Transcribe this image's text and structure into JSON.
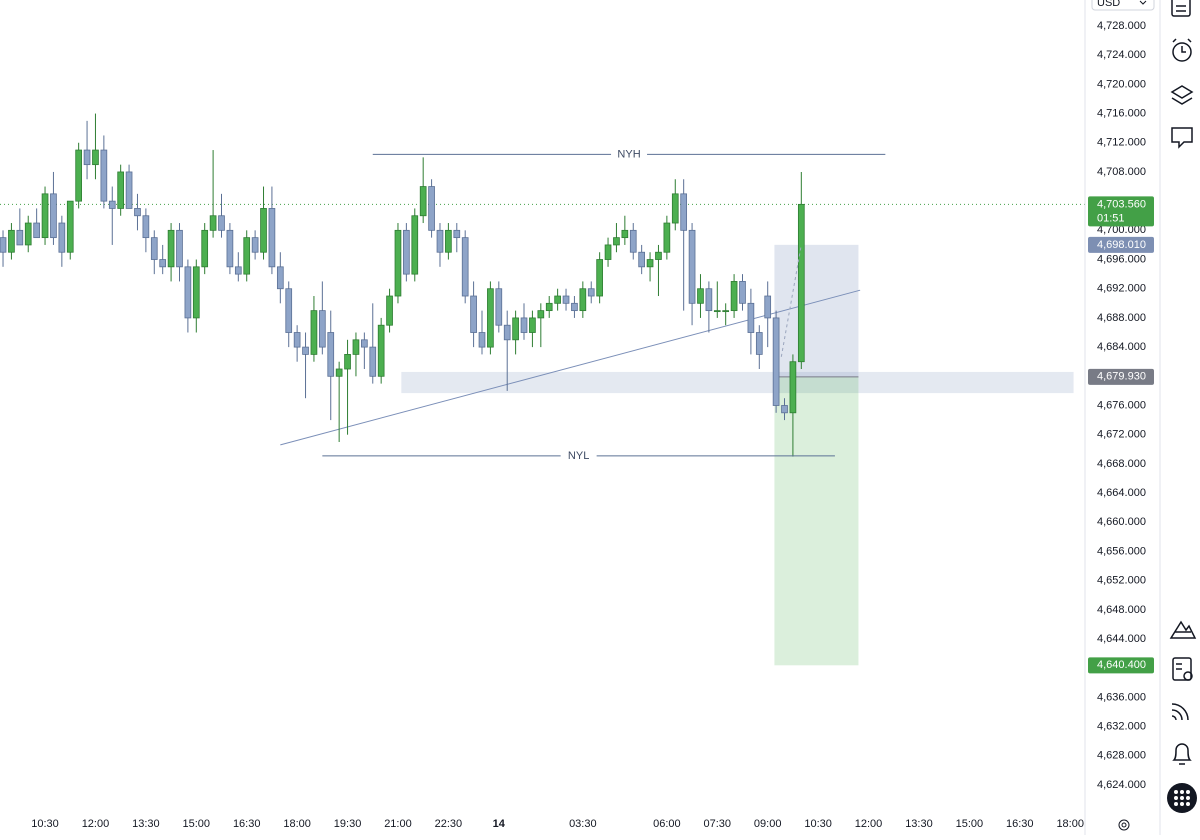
{
  "chart_data": {
    "type": "candlestick",
    "currency": "USD",
    "up_color": "#4caf50",
    "up_border": "#2e7d32",
    "down_color": "#8ea4c8",
    "down_border": "#5b7095",
    "x": [
      9,
      9.25,
      9.5,
      9.75,
      10,
      10.25,
      10.5,
      10.75,
      11,
      11.25,
      11.5,
      11.75,
      12,
      12.25,
      12.5,
      12.75,
      13,
      13.25,
      13.5,
      13.75,
      14,
      14.25,
      14.5,
      14.75,
      15,
      15.25,
      15.5,
      15.75,
      16,
      16.25,
      16.5,
      16.75,
      17,
      17.25,
      17.5,
      17.75,
      18,
      18.25,
      18.5,
      18.75,
      19,
      19.25,
      19.5,
      19.75,
      20,
      20.25,
      20.5,
      20.75,
      21,
      21.25,
      21.5,
      21.75,
      22,
      22.25,
      22.5,
      22.75,
      23,
      23.25,
      23.5,
      23.75,
      24,
      24.25,
      24.5,
      24.75,
      25,
      25.25,
      25.5,
      25.75,
      26,
      26.25,
      26.5,
      26.75,
      27,
      27.25,
      27.5,
      27.75,
      28,
      28.25,
      28.5,
      28.75,
      29,
      29.25,
      29.5,
      29.75,
      30,
      30.25,
      30.5,
      30.75,
      31,
      31.25,
      31.5,
      31.75,
      32,
      32.25,
      32.5,
      32.75,
      33
    ],
    "open": [
      4704,
      4699,
      4697,
      4700,
      4698,
      4701,
      4699,
      4705,
      4701,
      4697,
      4704,
      4711,
      4709,
      4711,
      4704,
      4703,
      4708,
      4703,
      4702,
      4699,
      4696,
      4695,
      4700,
      4695,
      4688,
      4695,
      4700,
      4702,
      4700,
      4695,
      4694,
      4699,
      4697,
      4703,
      4695,
      4692,
      4686,
      4684,
      4683,
      4689,
      4686,
      4680,
      4681,
      4683,
      4685,
      4684,
      4680,
      4687,
      4691,
      4700,
      4694,
      4702,
      4706,
      4700,
      4697,
      4700,
      4699,
      4691,
      4686,
      4684,
      4692,
      4687,
      4685,
      4688,
      4686,
      4688,
      4689,
      4690,
      4691,
      4690,
      4689,
      4692,
      4691,
      4696,
      4698,
      4699,
      4700,
      4697,
      4695,
      4696,
      4697,
      4701,
      4705,
      4700,
      4690,
      4692,
      4689,
      4689,
      4689,
      4693,
      4690,
      4686,
      4691,
      4688,
      4676,
      4675,
      4682
    ],
    "high": [
      4705,
      4700,
      4701,
      4703,
      4702,
      4703,
      4706,
      4708,
      4702,
      4704,
      4712,
      4715,
      4716,
      4713,
      4706,
      4709,
      4709,
      4705,
      4703,
      4700,
      4698,
      4701,
      4701,
      4696,
      4696,
      4701,
      4711,
      4705,
      4701,
      4697,
      4700,
      4700,
      4706,
      4706,
      4697,
      4693,
      4687,
      4686,
      4691,
      4693,
      4689,
      4682,
      4685,
      4686,
      4686,
      4690,
      4688,
      4692,
      4701,
      4701,
      4703,
      4710,
      4707,
      4701,
      4701,
      4701,
      4700,
      4693,
      4689,
      4693,
      4693,
      4689,
      4689,
      4690,
      4689,
      4690,
      4691,
      4692,
      4692,
      4691,
      4693,
      4693,
      4697,
      4699,
      4701,
      4702,
      4701,
      4698,
      4697,
      4698,
      4702,
      4707,
      4707,
      4701,
      4694,
      4693,
      4693,
      4690,
      4694,
      4694,
      4692,
      4687,
      4693,
      4689,
      4677,
      4683,
      4708
    ],
    "low": [
      4697,
      4695,
      4696,
      4698,
      4697,
      4699,
      4698,
      4698,
      4695,
      4696,
      4703,
      4707,
      4707,
      4703,
      4698,
      4702,
      4703,
      4700,
      4697,
      4694,
      4694,
      4693,
      4693,
      4686,
      4686,
      4694,
      4699,
      4699,
      4694,
      4693,
      4693,
      4696,
      4696,
      4694,
      4690,
      4684,
      4682,
      4677,
      4682,
      4683,
      4674,
      4671,
      4672,
      4680,
      4681,
      4679,
      4679,
      4686,
      4690,
      4693,
      4693,
      4701,
      4699,
      4695,
      4696,
      4697,
      4690,
      4684,
      4683,
      4683,
      4686,
      4678,
      4683,
      4685,
      4684,
      4684,
      4688,
      4689,
      4689,
      4688,
      4688,
      4690,
      4690,
      4695,
      4697,
      4698,
      4696,
      4694,
      4693,
      4691,
      4696,
      4700,
      4689,
      4687,
      4688,
      4686,
      4688,
      4687,
      4688,
      4689,
      4683,
      4681,
      4684,
      4675,
      4674,
      4669,
      4681
    ],
    "close": [
      4699,
      4697,
      4700,
      4698,
      4701,
      4699,
      4705,
      4699,
      4697,
      4704,
      4711,
      4709,
      4711,
      4704,
      4703,
      4708,
      4703,
      4702,
      4699,
      4696,
      4695,
      4700,
      4695,
      4688,
      4695,
      4700,
      4702,
      4700,
      4695,
      4694,
      4699,
      4697,
      4703,
      4695,
      4692,
      4686,
      4684,
      4683,
      4689,
      4684,
      4680,
      4681,
      4683,
      4685,
      4684,
      4680,
      4687,
      4691,
      4700,
      4694,
      4702,
      4706,
      4700,
      4697,
      4700,
      4699,
      4691,
      4686,
      4684,
      4692,
      4687,
      4685,
      4688,
      4686,
      4688,
      4689,
      4690,
      4691,
      4690,
      4689,
      4692,
      4691,
      4696,
      4698,
      4699,
      4700,
      4697,
      4695,
      4696,
      4697,
      4701,
      4705,
      4700,
      4690,
      4692,
      4689,
      4689,
      4689,
      4693,
      4690,
      4686,
      4683,
      4688,
      4676,
      4675,
      4682,
      4703.56
    ],
    "xlim": [
      9.16,
      41.44
    ],
    "ylim": [
      4620.85,
      4731.56
    ],
    "xticks": [
      {
        "value": 10.5,
        "label": "10:30"
      },
      {
        "value": 12,
        "label": "12:00"
      },
      {
        "value": 13.5,
        "label": "13:30"
      },
      {
        "value": 15,
        "label": "15:00"
      },
      {
        "value": 16.5,
        "label": "16:30"
      },
      {
        "value": 18,
        "label": "18:00"
      },
      {
        "value": 19.5,
        "label": "19:30"
      },
      {
        "value": 21,
        "label": "21:00"
      },
      {
        "value": 22.5,
        "label": "22:30"
      },
      {
        "value": 24,
        "label": "14"
      },
      {
        "value": 26.5,
        "label": "03:30"
      },
      {
        "value": 29,
        "label": "06:00"
      },
      {
        "value": 30.5,
        "label": "07:30"
      },
      {
        "value": 32,
        "label": "09:00"
      },
      {
        "value": 33.5,
        "label": "10:30"
      },
      {
        "value": 35,
        "label": "12:00"
      },
      {
        "value": 36.5,
        "label": "13:30"
      },
      {
        "value": 38,
        "label": "15:00"
      },
      {
        "value": 39.5,
        "label": "16:30"
      },
      {
        "value": 41,
        "label": "18:00"
      }
    ],
    "yticks": [
      {
        "value": 4624,
        "label": "4,624.000"
      },
      {
        "value": 4628,
        "label": "4,628.000"
      },
      {
        "value": 4632,
        "label": "4,632.000"
      },
      {
        "value": 4636,
        "label": "4,636.000"
      },
      {
        "value": 4640,
        "label": "4,640.000"
      },
      {
        "value": 4644,
        "label": "4,644.000"
      },
      {
        "value": 4648,
        "label": "4,648.000"
      },
      {
        "value": 4652,
        "label": "4,652.000"
      },
      {
        "value": 4656,
        "label": "4,656.000"
      },
      {
        "value": 4660,
        "label": "4,660.000"
      },
      {
        "value": 4664,
        "label": "4,664.000"
      },
      {
        "value": 4668,
        "label": "4,668.000"
      },
      {
        "value": 4672,
        "label": "4,672.000"
      },
      {
        "value": 4676,
        "label": "4,676.000"
      },
      {
        "value": 4680,
        "label": "4,680.000"
      },
      {
        "value": 4684,
        "label": "4,684.000"
      },
      {
        "value": 4688,
        "label": "4,688.000"
      },
      {
        "value": 4692,
        "label": "4,692.000"
      },
      {
        "value": 4696,
        "label": "4,696.000"
      },
      {
        "value": 4700,
        "label": "4,700.000"
      },
      {
        "value": 4704,
        "label": "4,704.000"
      },
      {
        "value": 4708,
        "label": "4,708.000"
      },
      {
        "value": 4712,
        "label": "4,712.000"
      },
      {
        "value": 4716,
        "label": "4,716.000"
      },
      {
        "value": 4720,
        "label": "4,720.000"
      },
      {
        "value": 4724,
        "label": "4,724.000"
      },
      {
        "value": 4728,
        "label": "4,728.000"
      }
    ],
    "levels": [
      {
        "label": "NYH",
        "y": 4710.4,
        "x": [
          20.25,
          35.5
        ]
      },
      {
        "label": "NYL",
        "y": 4669.1,
        "x": [
          18.75,
          34
        ]
      }
    ],
    "trendline": {
      "x": [
        17.5,
        34.75
      ],
      "y": [
        4670.6,
        4691.8
      ]
    },
    "zone": {
      "x": [
        21.1,
        41.1
      ],
      "y": [
        4677.7,
        4680.6
      ]
    },
    "position": {
      "x": [
        32.2,
        34.7
      ],
      "entry": 4679.93,
      "target": 4698.01,
      "stop": 4640.4
    },
    "price_labels": [
      {
        "value": 4703.56,
        "label": "4,703.560",
        "countdown": "01:51",
        "color": "#43a047"
      },
      {
        "value": 4698.01,
        "label": "4,698.010",
        "color": "#7d8fb3"
      },
      {
        "value": 4679.93,
        "label": "4,679.930",
        "color": "#787b86"
      },
      {
        "value": 4640.4,
        "label": "4,640.400",
        "color": "#43a047"
      }
    ]
  }
}
